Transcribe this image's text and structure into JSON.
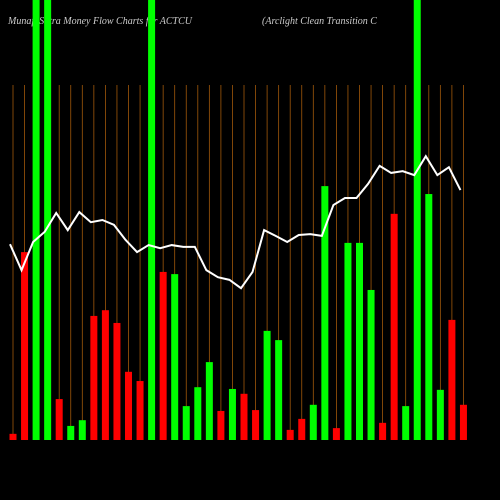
{
  "chart_data": {
    "type": "bar-line",
    "title": "MunafaSutra  Money Flow  Charts for ACTCU",
    "subtitle": "(Arclight Clean  Transition  C",
    "background": "#000000",
    "grid_color": "#a0580a",
    "ylim": [
      0,
      100
    ],
    "series": [
      {
        "type": "bar",
        "colors": [
          "#ff0000",
          "#ff0000",
          "#00ff00",
          "#00ff00",
          "#ff0000",
          "#00ff00",
          "#00ff00",
          "#ff0000",
          "#ff0000",
          "#ff0000",
          "#ff0000",
          "#ff0000",
          "#00ff00",
          "#ff0000",
          "#00ff00",
          "#00ff00",
          "#00ff00",
          "#00ff00",
          "#ff0000",
          "#00ff00",
          "#ff0000",
          "#ff0000",
          "#00ff00",
          "#00ff00",
          "#ff0000",
          "#ff0000",
          "#00ff00",
          "#00ff00",
          "#ff0000",
          "#00ff00",
          "#00ff00",
          "#00ff00",
          "#ff0000",
          "#ff0000",
          "#00ff00",
          "#00ff00",
          "#00ff00",
          "#00ff00",
          "#ff0000",
          "#ff0000"
        ],
        "values": [
          1.4,
          42.7,
          100,
          100,
          9.3,
          3.2,
          4.5,
          28.2,
          29.5,
          26.6,
          15.5,
          13.4,
          100,
          38.2,
          37.7,
          7.7,
          12,
          17.7,
          6.6,
          11.6,
          10.5,
          6.8,
          24.8,
          22.7,
          2.3,
          4.8,
          8,
          57.7,
          2.7,
          44.8,
          44.8,
          34.1,
          3.9,
          51.4,
          7.7,
          100,
          55.9,
          11.4,
          27.3,
          8
        ]
      },
      {
        "type": "line",
        "color": "#ffffff",
        "values": [
          44.5,
          38.6,
          45,
          47.3,
          51.6,
          47.7,
          51.8,
          49.5,
          50,
          48.9,
          45.5,
          42.7,
          44.3,
          43.6,
          44.3,
          43.9,
          43.9,
          38.6,
          37,
          36.4,
          34.5,
          38.2,
          47.7,
          46.4,
          45,
          46.6,
          46.8,
          46.4,
          53.4,
          55,
          55,
          58.2,
          62.3,
          60.7,
          61.1,
          60.2,
          64.5,
          60.2,
          62,
          56.8
        ]
      }
    ]
  }
}
